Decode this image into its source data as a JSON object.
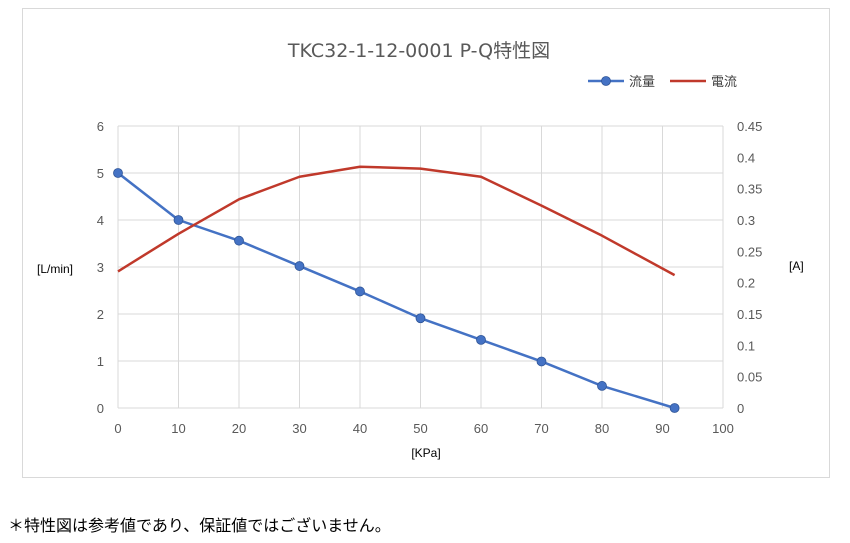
{
  "chart_data": {
    "type": "line",
    "title": "TKC32-1-12-0001 P-Q特性図",
    "xlabel": "[KPa]",
    "ylabel": "[L/min]",
    "y2label": "[A]",
    "xlim": [
      0,
      100
    ],
    "xticks": [
      "0",
      "10",
      "20",
      "30",
      "40",
      "50",
      "60",
      "70",
      "80",
      "90",
      "100"
    ],
    "ylim": [
      0,
      6
    ],
    "yticks": [
      "0",
      "1",
      "2",
      "3",
      "4",
      "5",
      "6"
    ],
    "y2lim": [
      0,
      0.45
    ],
    "y2ticks": [
      "0",
      "0.05",
      "0.1",
      "0.15",
      "0.2",
      "0.25",
      "0.3",
      "0.35",
      "0.4",
      "0.45"
    ],
    "grid": true,
    "legend_position": "top-right",
    "series": [
      {
        "name": "流量",
        "axis": "left",
        "color": "#4472c4",
        "marker": "circle",
        "x": [
          0,
          10,
          20,
          30,
          40,
          50,
          60,
          70,
          80,
          92
        ],
        "y": [
          5.0,
          4.0,
          3.56,
          3.02,
          2.48,
          1.91,
          1.45,
          0.99,
          0.47,
          0.0
        ]
      },
      {
        "name": "電流",
        "axis": "right",
        "color": "#c0392b",
        "marker": "none",
        "x": [
          0,
          10,
          20,
          30,
          40,
          50,
          60,
          70,
          80,
          92
        ],
        "y": [
          0.218,
          0.278,
          0.333,
          0.369,
          0.385,
          0.382,
          0.369,
          0.323,
          0.275,
          0.212
        ]
      }
    ]
  },
  "footnote": "＊特性図は参考値であり、保証値ではございません。"
}
